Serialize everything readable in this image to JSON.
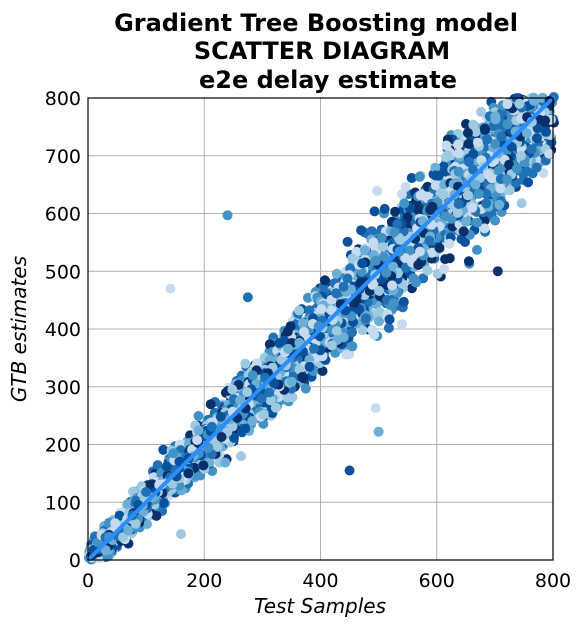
{
  "chart_data": {
    "type": "scatter",
    "title_lines": [
      "Gradient Tree Boosting model",
      "SCATTER DIAGRAM",
      "e2e delay estimate"
    ],
    "xlabel": "Test Samples",
    "ylabel": "GTB estimates",
    "xlim": [
      0,
      800
    ],
    "ylim": [
      0,
      800
    ],
    "xticks": [
      "0",
      "200",
      "400",
      "600",
      "800"
    ],
    "yticks": [
      "0",
      "100",
      "200",
      "300",
      "400",
      "500",
      "600",
      "700",
      "800"
    ],
    "grid": true,
    "reference_line": {
      "from": [
        0,
        0
      ],
      "to": [
        800,
        800
      ],
      "color": "#2a8cff"
    },
    "colormap": [
      "#c6dbef",
      "#9ecae1",
      "#6baed6",
      "#4292c6",
      "#2171b5",
      "#08519c",
      "#08306b"
    ],
    "point_count": 4200,
    "spread_note": "points cluster around y = x; spread grows with x",
    "outliers": [
      {
        "x": 142,
        "y": 470
      },
      {
        "x": 240,
        "y": 597
      },
      {
        "x": 705,
        "y": 500
      },
      {
        "x": 500,
        "y": 222
      },
      {
        "x": 450,
        "y": 155
      },
      {
        "x": 160,
        "y": 45
      },
      {
        "x": 275,
        "y": 455
      },
      {
        "x": 495,
        "y": 263
      }
    ]
  }
}
